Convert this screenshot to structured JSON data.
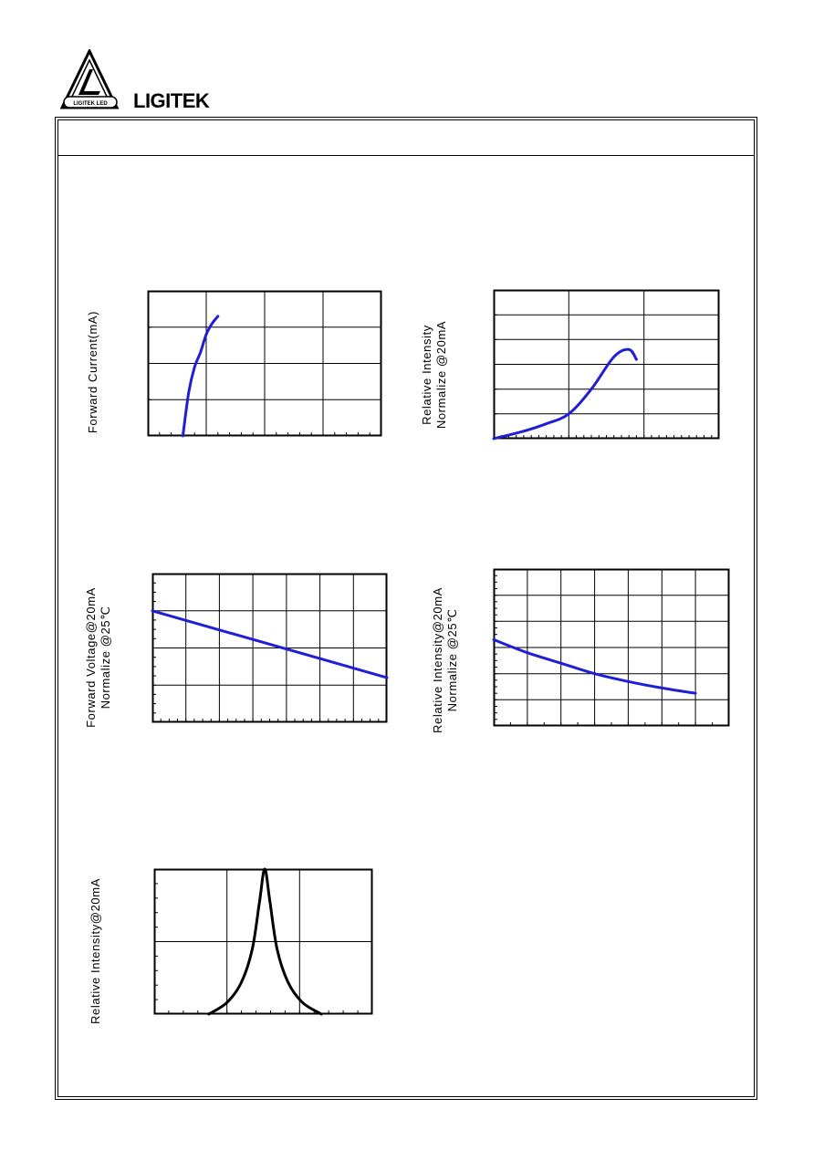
{
  "brand": {
    "name": "LIGITEK",
    "logo_text": "LIGITEK LED"
  },
  "colors": {
    "curve_blue": "#1f1fd6",
    "curve_black": "#000000"
  },
  "charts": {
    "fwd_current": {
      "ylabel": "Forward Current(mA)"
    },
    "rel_intensity_current": {
      "ylabel_line1": "Relative Intensity",
      "ylabel_line2": "Normalize @20mA"
    },
    "fwd_voltage_temp": {
      "ylabel_line1": "Forward Voltage@20mA",
      "ylabel_line2": "Normalize @25℃"
    },
    "rel_intensity_temp": {
      "ylabel_line1": "Relative Intensity@20mA",
      "ylabel_line2": "Normalize @25℃"
    },
    "spectrum": {
      "ylabel": "Relative Intensity@20mA"
    }
  },
  "chart_data": [
    {
      "type": "line",
      "name": "forward-current-vs-voltage",
      "ylabel": "Forward Current(mA)",
      "xlim": [
        0,
        4
      ],
      "ylim": [
        0,
        4
      ],
      "x": [
        0.6,
        0.7,
        0.8,
        0.9,
        1.0,
        1.1,
        1.2
      ],
      "y": [
        0.0,
        1.2,
        1.9,
        2.3,
        2.8,
        3.1,
        3.3
      ]
    },
    {
      "type": "line",
      "name": "relative-intensity-vs-current",
      "ylabel": "Relative Intensity Normalize @20mA",
      "xlim": [
        0,
        3
      ],
      "ylim": [
        0,
        6
      ],
      "x": [
        0.0,
        0.4,
        0.7,
        1.0,
        1.3,
        1.6,
        1.8,
        1.9
      ],
      "y": [
        0.0,
        0.3,
        0.6,
        1.0,
        2.0,
        3.3,
        3.6,
        3.2
      ]
    },
    {
      "type": "line",
      "name": "forward-voltage-vs-temperature",
      "ylabel": "Forward Voltage@20mA Normalize @25℃",
      "xlim": [
        0,
        7
      ],
      "ylim": [
        0,
        4
      ],
      "x": [
        0,
        7
      ],
      "y": [
        3.0,
        1.2
      ]
    },
    {
      "type": "line",
      "name": "relative-intensity-vs-temperature",
      "ylabel": "Relative Intensity@20mA Normalize @25℃",
      "xlim": [
        0,
        7
      ],
      "ylim": [
        0,
        6
      ],
      "x": [
        0,
        1,
        2,
        3,
        4,
        5,
        6
      ],
      "y": [
        3.3,
        2.8,
        2.4,
        2.0,
        1.7,
        1.45,
        1.25
      ]
    },
    {
      "type": "line",
      "name": "spectral-distribution",
      "ylabel": "Relative Intensity@20mA",
      "xlim": [
        0,
        3
      ],
      "ylim": [
        0,
        1
      ],
      "x": [
        0.75,
        1.0,
        1.2,
        1.35,
        1.45,
        1.52,
        1.59,
        1.69,
        1.84,
        2.04,
        2.3
      ],
      "y": [
        0.0,
        0.08,
        0.22,
        0.45,
        0.78,
        1.0,
        0.78,
        0.45,
        0.22,
        0.08,
        0.0
      ]
    }
  ]
}
